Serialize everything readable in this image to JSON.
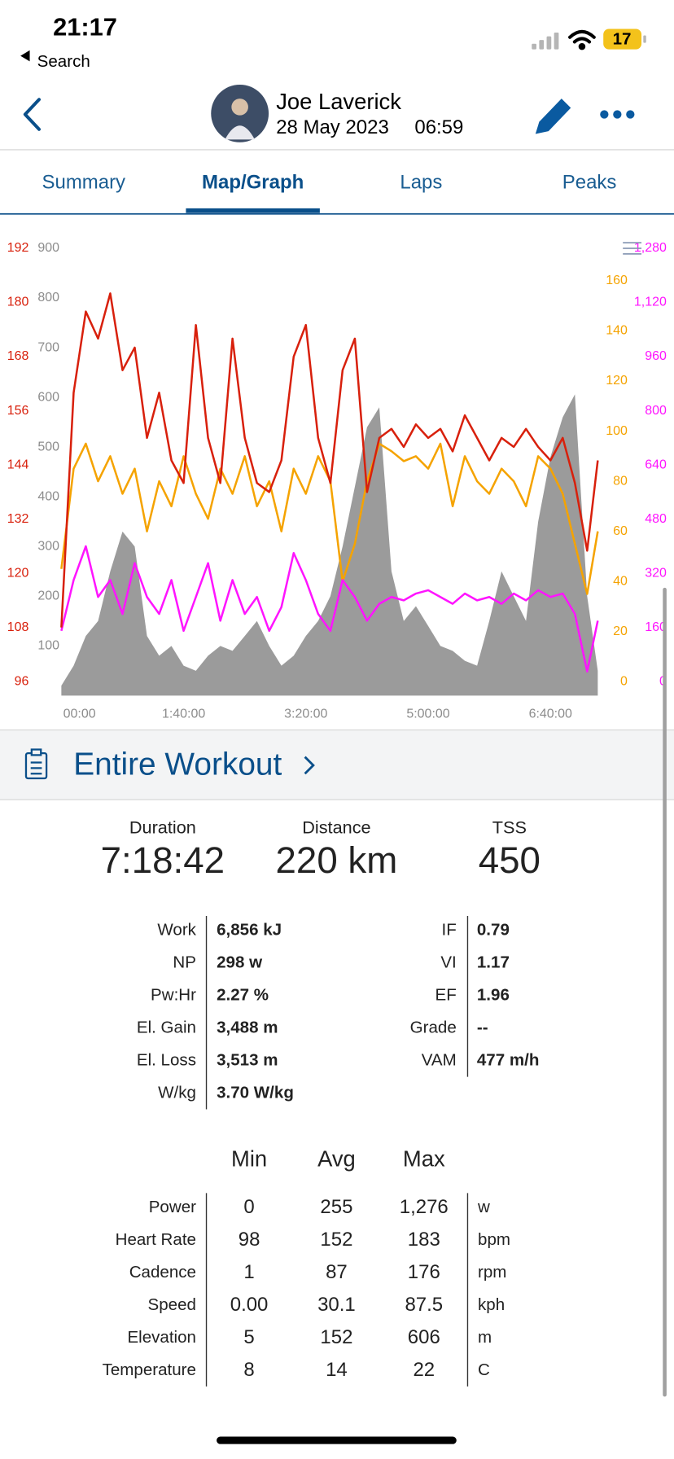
{
  "status_bar": {
    "time": "21:17",
    "back_label": "Search",
    "battery": "17"
  },
  "header": {
    "name": "Joe Laverick",
    "date": "28 May 2023",
    "time": "06:59"
  },
  "tabs": [
    "Summary",
    "Map/Graph",
    "Laps",
    "Peaks"
  ],
  "active_tab": 1,
  "chart_data": {
    "type": "line",
    "x": [
      0,
      600,
      1200,
      1800,
      2400,
      3000,
      3600,
      4200,
      4800,
      5400,
      6000,
      6600,
      7200,
      7800,
      8400,
      9000,
      9600,
      10200,
      10800,
      11400,
      12000,
      12600,
      13200,
      13800,
      14400,
      15000,
      15600,
      16200,
      16800,
      17400,
      18000,
      18600,
      19200,
      19800,
      20400,
      21000,
      21600,
      22200,
      22800,
      23400,
      24000,
      24600,
      25200,
      25800,
      26322
    ],
    "xlim": [
      0,
      26322
    ],
    "xticks": [
      {
        "value": 0,
        "label": "00:00"
      },
      {
        "value": 6000,
        "label": "1:40:00"
      },
      {
        "value": 12000,
        "label": "3:20:00"
      },
      {
        "value": 18000,
        "label": "5:00:00"
      },
      {
        "value": 24000,
        "label": "6:40:00"
      }
    ],
    "ylim": [
      0,
      900
    ],
    "yticks": [
      100,
      200,
      300,
      400,
      500,
      600,
      700,
      800,
      900
    ],
    "y2lim": [
      96,
      192
    ],
    "y2ticks": [
      96,
      108,
      120,
      132,
      144,
      156,
      168,
      180,
      192
    ],
    "y3lim": [
      0,
      160
    ],
    "y3ticks": [
      0,
      20,
      40,
      60,
      80,
      100,
      120,
      140,
      160
    ],
    "y4lim": [
      0,
      1280
    ],
    "y4ticks": [
      0,
      160,
      320,
      480,
      640,
      800,
      960,
      {
        "value": 1120,
        "label": "1,120"
      },
      {
        "value": 1280,
        "label": "1,280"
      }
    ],
    "grid": false,
    "series": [
      {
        "axis": "y",
        "area": true,
        "color": "#9b9b9b",
        "values": [
          20,
          60,
          120,
          150,
          250,
          330,
          300,
          120,
          80,
          100,
          60,
          50,
          80,
          100,
          90,
          120,
          150,
          100,
          60,
          80,
          120,
          150,
          200,
          300,
          420,
          540,
          580,
          250,
          150,
          180,
          140,
          100,
          90,
          70,
          60,
          150,
          250,
          200,
          150,
          350,
          480,
          560,
          606,
          200,
          50
        ]
      },
      {
        "axis": "y3",
        "color": "#f5a300",
        "values": [
          45,
          85,
          95,
          80,
          90,
          75,
          85,
          60,
          80,
          70,
          90,
          75,
          65,
          85,
          75,
          90,
          70,
          80,
          60,
          85,
          75,
          90,
          80,
          40,
          55,
          80,
          95,
          92,
          88,
          90,
          85,
          95,
          70,
          90,
          80,
          75,
          85,
          80,
          70,
          90,
          85,
          75,
          55,
          35,
          60
        ]
      },
      {
        "axis": "y4",
        "color": "#ff14ff",
        "values": [
          150,
          300,
          400,
          250,
          300,
          200,
          350,
          250,
          200,
          300,
          150,
          250,
          350,
          180,
          300,
          200,
          250,
          150,
          220,
          380,
          300,
          200,
          150,
          300,
          250,
          180,
          230,
          250,
          240,
          260,
          270,
          250,
          230,
          260,
          240,
          250,
          230,
          260,
          240,
          270,
          250,
          260,
          200,
          30,
          180
        ]
      },
      {
        "axis": "y2",
        "color": "#d8200c",
        "values": [
          108,
          160,
          178,
          172,
          182,
          165,
          170,
          150,
          160,
          145,
          140,
          175,
          150,
          140,
          172,
          150,
          140,
          138,
          145,
          168,
          175,
          150,
          140,
          165,
          172,
          138,
          150,
          152,
          148,
          153,
          150,
          152,
          147,
          155,
          150,
          145,
          150,
          148,
          152,
          148,
          145,
          150,
          140,
          125,
          145
        ]
      }
    ]
  },
  "section": {
    "title": "Entire Workout"
  },
  "summary": [
    {
      "label": "Duration",
      "value": "7:18:42"
    },
    {
      "label": "Distance",
      "value": "220 km"
    },
    {
      "label": "TSS",
      "value": "450"
    }
  ],
  "metrics_left": [
    {
      "label": "Work",
      "value": "6,856 kJ"
    },
    {
      "label": "NP",
      "value": "298 w"
    },
    {
      "label": "Pw:Hr",
      "value": "2.27 %"
    },
    {
      "label": "El. Gain",
      "value": "3,488 m"
    },
    {
      "label": "El. Loss",
      "value": "3,513 m"
    },
    {
      "label": "W/kg",
      "value": "3.70 W/kg"
    }
  ],
  "metrics_right": [
    {
      "label": "IF",
      "value": "0.79"
    },
    {
      "label": "VI",
      "value": "1.17"
    },
    {
      "label": "EF",
      "value": "1.96"
    },
    {
      "label": "Grade",
      "value": "--"
    },
    {
      "label": "VAM",
      "value": "477 m/h"
    }
  ],
  "table": {
    "columns": [
      "Min",
      "Avg",
      "Max"
    ],
    "rows": [
      {
        "label": "Power",
        "min": "0",
        "avg": "255",
        "max": "1,276",
        "unit": "w"
      },
      {
        "label": "Heart Rate",
        "min": "98",
        "avg": "152",
        "max": "183",
        "unit": "bpm"
      },
      {
        "label": "Cadence",
        "min": "1",
        "avg": "87",
        "max": "176",
        "unit": "rpm"
      },
      {
        "label": "Speed",
        "min": "0.00",
        "avg": "30.1",
        "max": "87.5",
        "unit": "kph"
      },
      {
        "label": "Elevation",
        "min": "5",
        "avg": "152",
        "max": "606",
        "unit": "m"
      },
      {
        "label": "Temperature",
        "min": "8",
        "avg": "14",
        "max": "22",
        "unit": "C"
      }
    ]
  }
}
